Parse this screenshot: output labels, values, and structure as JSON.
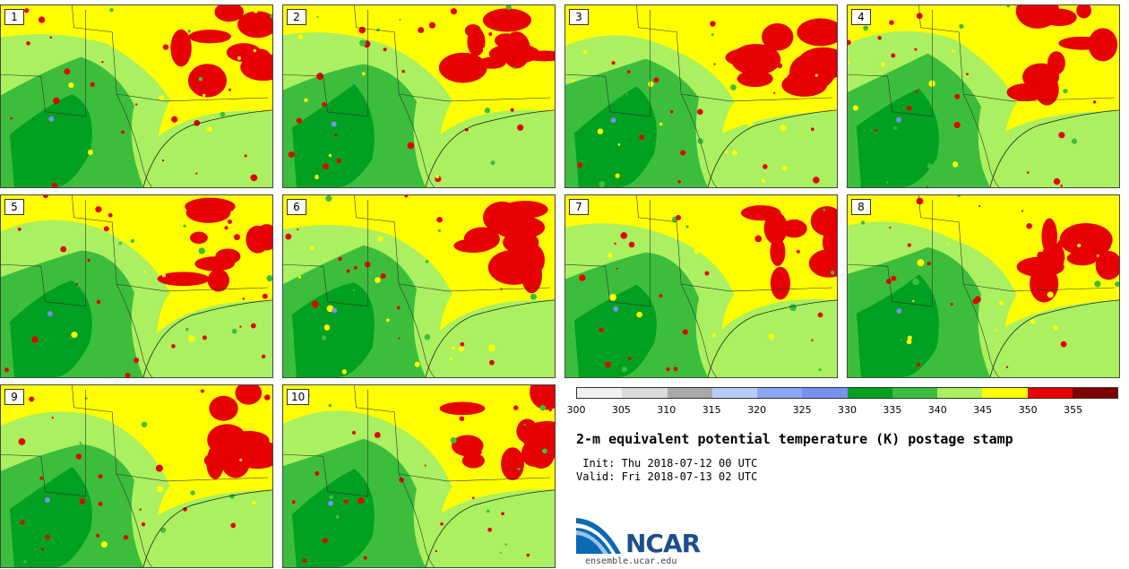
{
  "members": [
    "1",
    "2",
    "3",
    "4",
    "5",
    "6",
    "7",
    "8",
    "9",
    "10"
  ],
  "colorbar": {
    "ticks": [
      "300",
      "305",
      "310",
      "315",
      "320",
      "325",
      "330",
      "335",
      "340",
      "345",
      "350",
      "355"
    ],
    "colors": [
      "#f0f0f0",
      "#dadada",
      "#a8a8a8",
      "#b8ccf8",
      "#8ca6f8",
      "#7890f0",
      "#00a020",
      "#3cbe3c",
      "#aaf060",
      "#ffff00",
      "#e60000",
      "#800000"
    ]
  },
  "title": "2-m equivalent potential temperature (K) postage stamp",
  "init_label": " Init:",
  "init_value": "Thu 2018-07-12 00 UTC",
  "valid_label": "Valid:",
  "valid_value": "Fri 2018-07-13 02 UTC",
  "logo": {
    "name": "NCAR",
    "url": "ensemble.ucar.edu"
  },
  "map_colors": {
    "dark_green": "#00a020",
    "green": "#3cbe3c",
    "light_green": "#aaf060",
    "yellow": "#ffff00",
    "red": "#e60000",
    "blue": "#7890f0"
  }
}
